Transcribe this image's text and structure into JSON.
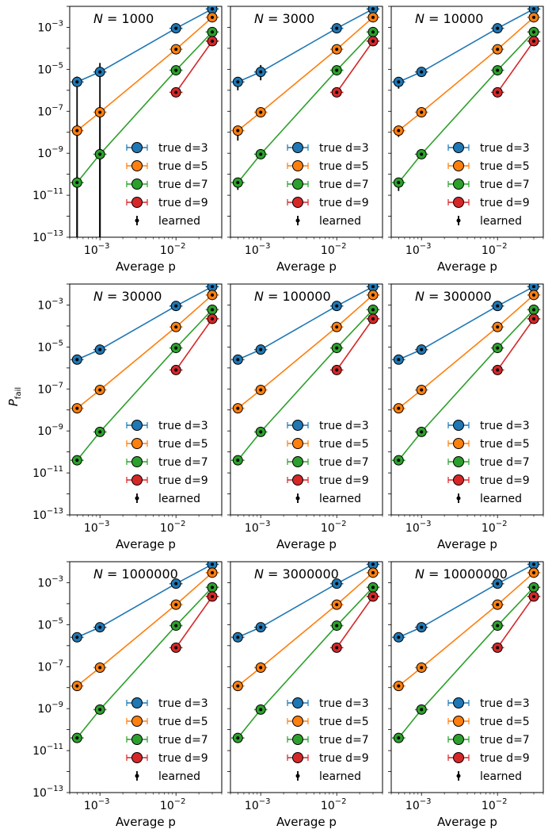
{
  "figure": {
    "ylabel": "P_fail",
    "ylabel_main": "P",
    "ylabel_sub": "fail"
  },
  "chart_data": {
    "type": "scatter",
    "xscale": "log",
    "yscale": "log",
    "xlabel": "Average p",
    "ylabel": "P_fail",
    "xlim": [
      0.0004,
      0.04
    ],
    "ylim": [
      1e-13,
      0.01
    ],
    "x": [
      0.0005,
      0.001,
      0.01,
      0.03
    ],
    "x_tick_labels": [
      {
        "base": "10",
        "exp": "−3",
        "value": 0.001
      },
      {
        "base": "10",
        "exp": "−2",
        "value": 0.01
      }
    ],
    "y_tick_labels": [
      {
        "base": "10",
        "exp": "−3",
        "value": 0.001
      },
      {
        "base": "10",
        "exp": "−5",
        "value": 1e-05
      },
      {
        "base": "10",
        "exp": "−7",
        "value": 1e-07
      },
      {
        "base": "10",
        "exp": "−9",
        "value": 1e-09
      },
      {
        "base": "10",
        "exp": "−11",
        "value": 1e-11
      },
      {
        "base": "10",
        "exp": "−13",
        "value": 1e-13
      }
    ],
    "series": [
      {
        "name": "true d=3",
        "color": "#1f77b4",
        "x": [
          0.0005,
          0.001,
          0.01,
          0.03
        ],
        "values": [
          2.5e-06,
          7.5e-06,
          0.0009,
          0.0075
        ]
      },
      {
        "name": "true d=5",
        "color": "#ff7f0e",
        "x": [
          0.0005,
          0.001,
          0.01,
          0.03
        ],
        "values": [
          1.2e-08,
          9e-08,
          9e-05,
          0.003
        ]
      },
      {
        "name": "true d=7",
        "color": "#2ca02c",
        "x": [
          0.0005,
          0.001,
          0.01,
          0.03
        ],
        "values": [
          4e-11,
          9e-10,
          9e-06,
          0.0006
        ]
      },
      {
        "name": "true d=9",
        "color": "#d62728",
        "x": [
          0.01,
          0.03
        ],
        "values": [
          8e-07,
          0.00022
        ]
      }
    ],
    "legend": {
      "placement": "lower-right",
      "entries": [
        "true d=3",
        "true d=5",
        "true d=7",
        "true d=9"
      ],
      "learned_label": "learned"
    },
    "panels": [
      {
        "title_prefix": "N",
        "N": "1000",
        "learned_error_bars": [
          {
            "x": 0.0005,
            "value": 2.5e-06,
            "lo": 1e-13,
            "hi": 4.5e-06
          },
          {
            "x": 0.001,
            "value": 7.5e-06,
            "lo": 1e-13,
            "hi": 2e-05
          },
          {
            "x": 0.0005,
            "value": 1.2e-08,
            "lo": 1e-13,
            "hi": 2.5e-08
          },
          {
            "x": 0.001,
            "value": 9e-08,
            "lo": 1e-13,
            "hi": 2e-07
          },
          {
            "x": 0.0005,
            "value": 4e-11,
            "lo": 1e-13,
            "hi": 8e-11
          },
          {
            "x": 0.001,
            "value": 9e-10,
            "lo": 1e-13,
            "hi": 1.8e-09
          }
        ]
      },
      {
        "title_prefix": "N",
        "N": "3000",
        "learned_error_bars": [
          {
            "x": 0.0005,
            "value": 2.5e-06,
            "lo": 1e-06,
            "hi": 4e-06
          },
          {
            "x": 0.001,
            "value": 7.5e-06,
            "lo": 3e-06,
            "hi": 1.6e-05
          },
          {
            "x": 0.0005,
            "value": 1.2e-08,
            "lo": 4e-09,
            "hi": 2e-08
          },
          {
            "x": 0.0005,
            "value": 4e-11,
            "lo": 1.8e-11,
            "hi": 6e-11
          }
        ]
      },
      {
        "title_prefix": "N",
        "N": "10000",
        "learned_error_bars": [
          {
            "x": 0.0005,
            "value": 2.5e-06,
            "lo": 1.2e-06,
            "hi": 3.5e-06
          },
          {
            "x": 0.0005,
            "value": 1.2e-08,
            "lo": 6e-09,
            "hi": 1.8e-08
          },
          {
            "x": 0.0005,
            "value": 4e-11,
            "lo": 1.6e-11,
            "hi": 6e-11
          }
        ]
      },
      {
        "title_prefix": "N",
        "N": "30000",
        "learned_error_bars": []
      },
      {
        "title_prefix": "N",
        "N": "100000",
        "learned_error_bars": []
      },
      {
        "title_prefix": "N",
        "N": "300000",
        "learned_error_bars": []
      },
      {
        "title_prefix": "N",
        "N": "1000000",
        "learned_error_bars": []
      },
      {
        "title_prefix": "N",
        "N": "3000000",
        "learned_error_bars": []
      },
      {
        "title_prefix": "N",
        "N": "10000000",
        "learned_error_bars": []
      }
    ]
  }
}
